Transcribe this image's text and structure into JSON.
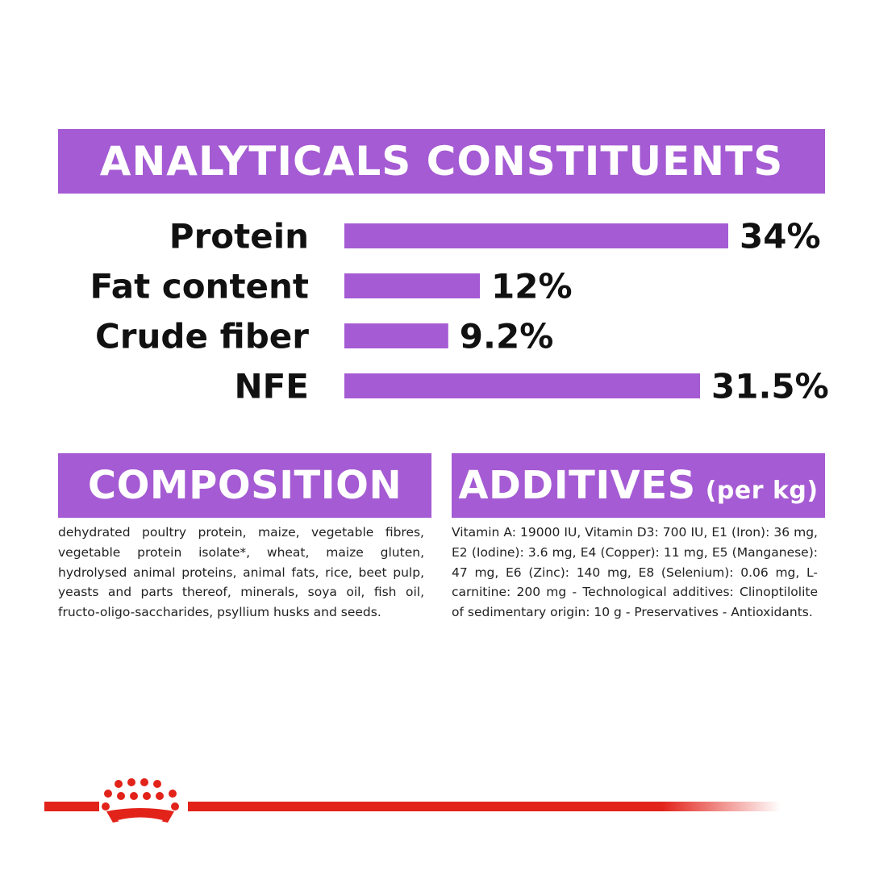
{
  "analytics": {
    "title": "ANALYTICALS CONSTITUENTS"
  },
  "chart_data": {
    "type": "bar",
    "orientation": "horizontal",
    "categories": [
      "Protein",
      "Fat content",
      "Crude fiber",
      "NFE"
    ],
    "values": [
      34,
      12,
      9.2,
      31.5
    ],
    "value_labels": [
      "34%",
      "12%",
      "9.2%",
      "31.5%"
    ],
    "unit": "%",
    "xlim": [
      0,
      34
    ],
    "grid": false,
    "legend": "none",
    "bar_color": "#a55bd3"
  },
  "composition": {
    "title": "COMPOSITION",
    "text": "dehydrated poultry protein, maize, vegetable fibres, vegetable protein isolate*, wheat, maize gluten, hydrolysed animal proteins, animal fats, rice, beet pulp, yeasts and parts thereof, minerals, soya oil, fish oil, fructo-oligo-saccharides, psyllium husks and seeds."
  },
  "additives": {
    "title": "ADDITIVES",
    "title_suffix": "(per kg)",
    "text": "Vitamin A: 19000 IU, Vitamin D3: 700 IU, E1 (Iron): 36 mg, E2 (Iodine): 3.6 mg, E4 (Copper): 11 mg, E5 (Manganese): 47 mg, E6 (Zinc): 140 mg, E8 (Selenium): 0.06 mg, L-carnitine: 200 mg - Technological additives: Clinoptilolite of sedimentary origin: 10 g - Preservatives - Antioxidants."
  },
  "colors": {
    "accent": "#a55bd3",
    "brand_red": "#e2231a",
    "text": "#111111"
  },
  "icons": {
    "brand_logo": "crown-icon"
  }
}
